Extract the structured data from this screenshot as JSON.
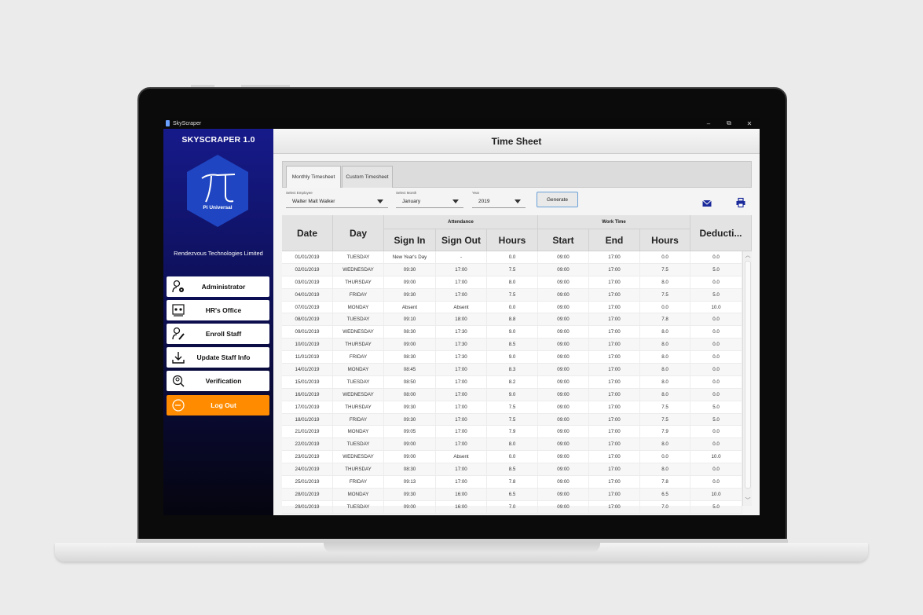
{
  "window": {
    "title": "SkyScraper",
    "minimize": "–",
    "restore": "⧉",
    "close": "✕"
  },
  "sidebar": {
    "brand": "SKYSCRAPER 1.0",
    "logo_text": "Pi Universal",
    "company": "Rendezvous Technologies Limited",
    "items": [
      {
        "label": "Administrator",
        "icon": "admin-user-gear-icon"
      },
      {
        "label": "HR's Office",
        "icon": "hr-office-icon"
      },
      {
        "label": "Enroll Staff",
        "icon": "enroll-user-pen-icon"
      },
      {
        "label": "Update Staff Info",
        "icon": "download-tray-icon"
      },
      {
        "label": "Verification",
        "icon": "verification-user-search-icon"
      },
      {
        "label": "Log Out",
        "icon": "logout-circle-icon"
      }
    ],
    "colors": {
      "top": "#161a8a",
      "bottom": "#05050f",
      "logout": "#ff8c00",
      "logo_hex": "#1f45c2"
    }
  },
  "main": {
    "title": "Time Sheet",
    "tabs": [
      "Monthly Timesheet",
      "Custom Timesheet"
    ],
    "filters": {
      "employee_label": "Select Employee",
      "employee_value": "Walter Malt Walker",
      "month_label": "Select Month",
      "month_value": "January",
      "year_label": "Year",
      "year_value": "2019"
    },
    "generate_label": "Generate",
    "table": {
      "group_attendance": "Attendance",
      "group_worktime": "Work Time",
      "headers": [
        "Date",
        "Day",
        "Sign In",
        "Sign Out",
        "Hours",
        "Start",
        "End",
        "Hours",
        "Deducti..."
      ],
      "rows": [
        [
          "01/01/2019",
          "TUESDAY",
          "New Year's Day",
          "-",
          "0.0",
          "09:00",
          "17:00",
          "0.0",
          "0.0"
        ],
        [
          "02/01/2019",
          "WEDNESDAY",
          "09:30",
          "17:00",
          "7.5",
          "09:00",
          "17:00",
          "7.5",
          "5.0"
        ],
        [
          "03/01/2019",
          "THURSDAY",
          "09:00",
          "17:00",
          "8.0",
          "09:00",
          "17:00",
          "8.0",
          "0.0"
        ],
        [
          "04/01/2019",
          "FRIDAY",
          "09:30",
          "17:00",
          "7.5",
          "09:00",
          "17:00",
          "7.5",
          "5.0"
        ],
        [
          "07/01/2019",
          "MONDAY",
          "Absent",
          "Absent",
          "0.0",
          "09:00",
          "17:00",
          "0.0",
          "10.0"
        ],
        [
          "08/01/2019",
          "TUESDAY",
          "09:10",
          "18:00",
          "8.8",
          "09:00",
          "17:00",
          "7.8",
          "0.0"
        ],
        [
          "09/01/2019",
          "WEDNESDAY",
          "08:30",
          "17:30",
          "9.0",
          "09:00",
          "17:00",
          "8.0",
          "0.0"
        ],
        [
          "10/01/2019",
          "THURSDAY",
          "09:00",
          "17:30",
          "8.5",
          "09:00",
          "17:00",
          "8.0",
          "0.0"
        ],
        [
          "11/01/2019",
          "FRIDAY",
          "08:30",
          "17:30",
          "9.0",
          "09:00",
          "17:00",
          "8.0",
          "0.0"
        ],
        [
          "14/01/2019",
          "MONDAY",
          "08:45",
          "17:00",
          "8.3",
          "09:00",
          "17:00",
          "8.0",
          "0.0"
        ],
        [
          "15/01/2019",
          "TUESDAY",
          "08:50",
          "17:00",
          "8.2",
          "09:00",
          "17:00",
          "8.0",
          "0.0"
        ],
        [
          "16/01/2019",
          "WEDNESDAY",
          "08:00",
          "17:00",
          "9.0",
          "09:00",
          "17:00",
          "8.0",
          "0.0"
        ],
        [
          "17/01/2019",
          "THURSDAY",
          "09:30",
          "17:00",
          "7.5",
          "09:00",
          "17:00",
          "7.5",
          "5.0"
        ],
        [
          "18/01/2019",
          "FRIDAY",
          "09:30",
          "17:00",
          "7.5",
          "09:00",
          "17:00",
          "7.5",
          "5.0"
        ],
        [
          "21/01/2019",
          "MONDAY",
          "09:05",
          "17:00",
          "7.9",
          "09:00",
          "17:00",
          "7.9",
          "0.0"
        ],
        [
          "22/01/2019",
          "TUESDAY",
          "09:00",
          "17:00",
          "8.0",
          "09:00",
          "17:00",
          "8.0",
          "0.0"
        ],
        [
          "23/01/2019",
          "WEDNESDAY",
          "09:00",
          "Absent",
          "0.0",
          "09:00",
          "17:00",
          "0.0",
          "10.0"
        ],
        [
          "24/01/2019",
          "THURSDAY",
          "08:30",
          "17:00",
          "8.5",
          "09:00",
          "17:00",
          "8.0",
          "0.0"
        ],
        [
          "25/01/2019",
          "FRIDAY",
          "09:13",
          "17:00",
          "7.8",
          "09:00",
          "17:00",
          "7.8",
          "0.0"
        ],
        [
          "28/01/2019",
          "MONDAY",
          "09:30",
          "16:00",
          "6.5",
          "09:00",
          "17:00",
          "6.5",
          "10.0"
        ],
        [
          "29/01/2019",
          "TUESDAY",
          "09:00",
          "16:00",
          "7.0",
          "09:00",
          "17:00",
          "7.0",
          "5.0"
        ]
      ]
    }
  }
}
